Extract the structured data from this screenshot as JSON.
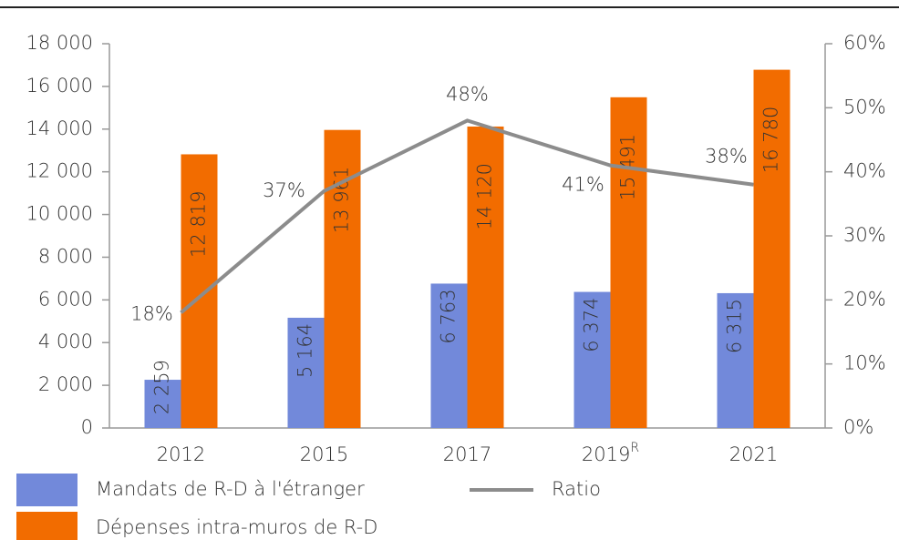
{
  "chart_data": {
    "type": "bar",
    "categories": [
      "2012",
      "2015",
      "2017",
      "2019",
      "2021"
    ],
    "category_notes": [
      null,
      null,
      null,
      "R",
      null
    ],
    "series": [
      {
        "name": "Mandats de R-D à l'étranger",
        "color": "#7289da",
        "values": [
          2259,
          5164,
          6763,
          6374,
          6315
        ],
        "value_labels": [
          "2 259",
          "5 164",
          "6 763",
          "6 374",
          "6 315"
        ]
      },
      {
        "name": "Dépenses intra-muros de R-D",
        "color": "#f26c00",
        "values": [
          12819,
          13961,
          14120,
          15491,
          16780
        ],
        "value_labels": [
          "12 819",
          "13 961",
          "14 120",
          "15 491",
          "16 780"
        ]
      },
      {
        "name": "Ratio",
        "type": "line",
        "axis": "y2",
        "color": "#8c8c8c",
        "values": [
          18,
          37,
          48,
          41,
          38
        ],
        "value_labels": [
          "18%",
          "37%",
          "48%",
          "41%",
          "38%"
        ]
      }
    ],
    "ylim": [
      0,
      18000
    ],
    "yticks": [
      0,
      {
        "value": 2000,
        "label": "2 000"
      },
      {
        "value": 4000,
        "label": "4 000"
      },
      {
        "value": 6000,
        "label": "6 000"
      },
      {
        "value": 8000,
        "label": "8 000"
      },
      {
        "value": 10000,
        "label": "10 000"
      },
      {
        "value": 12000,
        "label": "12 000"
      },
      {
        "value": 14000,
        "label": "14 000"
      },
      {
        "value": 16000,
        "label": "16 000"
      },
      {
        "value": 18000,
        "label": "18 000"
      }
    ],
    "y2lim": [
      0,
      60
    ],
    "y2ticks": [
      {
        "value": 0,
        "label": "0%"
      },
      {
        "value": 10,
        "label": "10%"
      },
      {
        "value": 20,
        "label": "20%"
      },
      {
        "value": 30,
        "label": "30%"
      },
      {
        "value": 40,
        "label": "40%"
      },
      {
        "value": 50,
        "label": "50%"
      },
      {
        "value": 60,
        "label": "60%"
      }
    ],
    "grid": false
  }
}
